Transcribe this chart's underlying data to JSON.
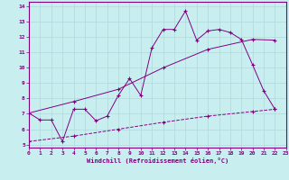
{
  "line1_x": [
    0,
    1,
    2,
    3,
    4,
    5,
    6,
    7,
    8,
    9,
    10,
    11,
    12,
    13,
    14,
    15,
    16,
    17,
    18,
    19,
    20,
    21,
    22
  ],
  "line1_y": [
    7.05,
    6.6,
    6.6,
    5.2,
    7.3,
    7.3,
    6.55,
    6.85,
    8.2,
    9.3,
    8.2,
    11.3,
    12.5,
    12.5,
    13.7,
    11.8,
    12.4,
    12.5,
    12.3,
    11.85,
    10.2,
    8.5,
    7.3
  ],
  "line2_x": [
    0,
    4,
    8,
    12,
    16,
    20,
    22
  ],
  "line2_y": [
    7.05,
    7.8,
    8.6,
    10.0,
    11.2,
    11.85,
    11.8
  ],
  "line3_x": [
    0,
    4,
    8,
    12,
    16,
    20,
    22
  ],
  "line3_y": [
    5.2,
    5.55,
    6.0,
    6.45,
    6.85,
    7.15,
    7.3
  ],
  "color": "#800080",
  "bg_color": "#c8eef0",
  "grid_color": "#b0d8da",
  "xlabel": "Windchill (Refroidissement éolien,°C)",
  "xlim": [
    0,
    23
  ],
  "ylim": [
    4.8,
    14.3
  ],
  "yticks": [
    5,
    6,
    7,
    8,
    9,
    10,
    11,
    12,
    13,
    14
  ],
  "xticks": [
    0,
    1,
    2,
    3,
    4,
    5,
    6,
    7,
    8,
    9,
    10,
    11,
    12,
    13,
    14,
    15,
    16,
    17,
    18,
    19,
    20,
    21,
    22,
    23
  ],
  "marker": "+"
}
